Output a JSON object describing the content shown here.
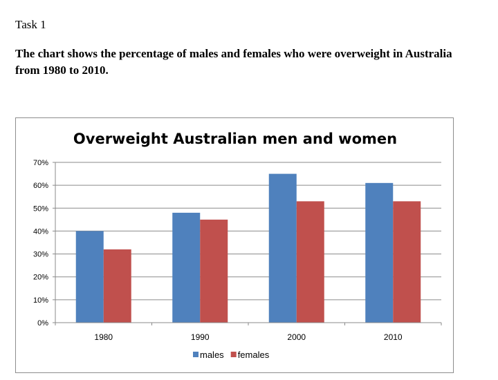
{
  "task_label": "Task 1",
  "prompt_text": "The chart shows the percentage of males and females who were overweight in Australia from 1980 to 2010.",
  "chart_data": {
    "type": "bar",
    "title": "Overweight Australian men and women",
    "categories": [
      "1980",
      "1990",
      "2000",
      "2010"
    ],
    "series": [
      {
        "name": "males",
        "values": [
          40,
          48,
          65,
          61
        ],
        "color": "#4f81bd"
      },
      {
        "name": "females",
        "values": [
          32,
          45,
          53,
          53
        ],
        "color": "#c0504d"
      }
    ],
    "ylim": [
      0,
      70
    ],
    "yticks": [
      "0%",
      "10%",
      "20%",
      "30%",
      "40%",
      "50%",
      "60%",
      "70%"
    ],
    "grid": true,
    "legend": "bottom"
  }
}
